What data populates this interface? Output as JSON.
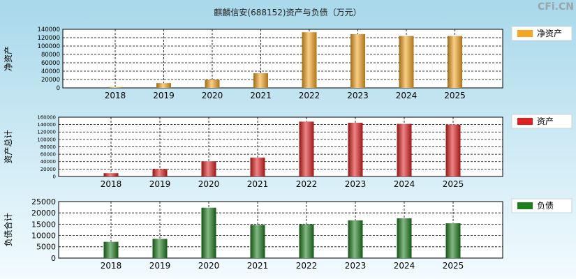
{
  "title": "麒麟信安(688152)资产与负债（万元）",
  "watermark": "CFi.CN",
  "colors": {
    "bg_top": "#a8d8ea",
    "bg_bottom": "#f2fbff",
    "equity": "#f5a623",
    "assets": "#e02020",
    "liabilities": "#1e7d1e"
  },
  "chart_data": [
    {
      "type": "bar",
      "categories": [
        "2018",
        "2019",
        "2020",
        "2021",
        "2022",
        "2023",
        "2024",
        "2025"
      ],
      "series": [
        {
          "name": "净资产",
          "values": [
            2000,
            11500,
            19500,
            35000,
            133000,
            128500,
            124000,
            124000
          ]
        }
      ],
      "ylabel": "净资产",
      "ylim": [
        0,
        140000
      ],
      "yticks": [
        0,
        20000,
        40000,
        60000,
        80000,
        100000,
        120000,
        140000
      ],
      "grid": true,
      "legend": "right"
    },
    {
      "type": "bar",
      "categories": [
        "2018",
        "2019",
        "2020",
        "2021",
        "2022",
        "2023",
        "2024",
        "2025"
      ],
      "series": [
        {
          "name": "资产",
          "values": [
            9000,
            20000,
            41000,
            51000,
            148000,
            145000,
            142000,
            140000
          ]
        }
      ],
      "ylabel": "资产总计",
      "ylim": [
        0,
        160000
      ],
      "yticks": [
        0,
        20000,
        40000,
        60000,
        80000,
        100000,
        120000,
        140000,
        160000
      ],
      "grid": true,
      "legend": "right"
    },
    {
      "type": "bar",
      "categories": [
        "2018",
        "2019",
        "2020",
        "2021",
        "2022",
        "2023",
        "2024",
        "2025"
      ],
      "series": [
        {
          "name": "负债",
          "values": [
            7200,
            8500,
            22300,
            14700,
            15000,
            16700,
            17600,
            15400
          ]
        }
      ],
      "ylabel": "负债合计",
      "ylim": [
        0,
        25000
      ],
      "yticks": [
        0,
        5000,
        10000,
        15000,
        20000,
        25000
      ],
      "grid": true,
      "legend": "right"
    }
  ]
}
